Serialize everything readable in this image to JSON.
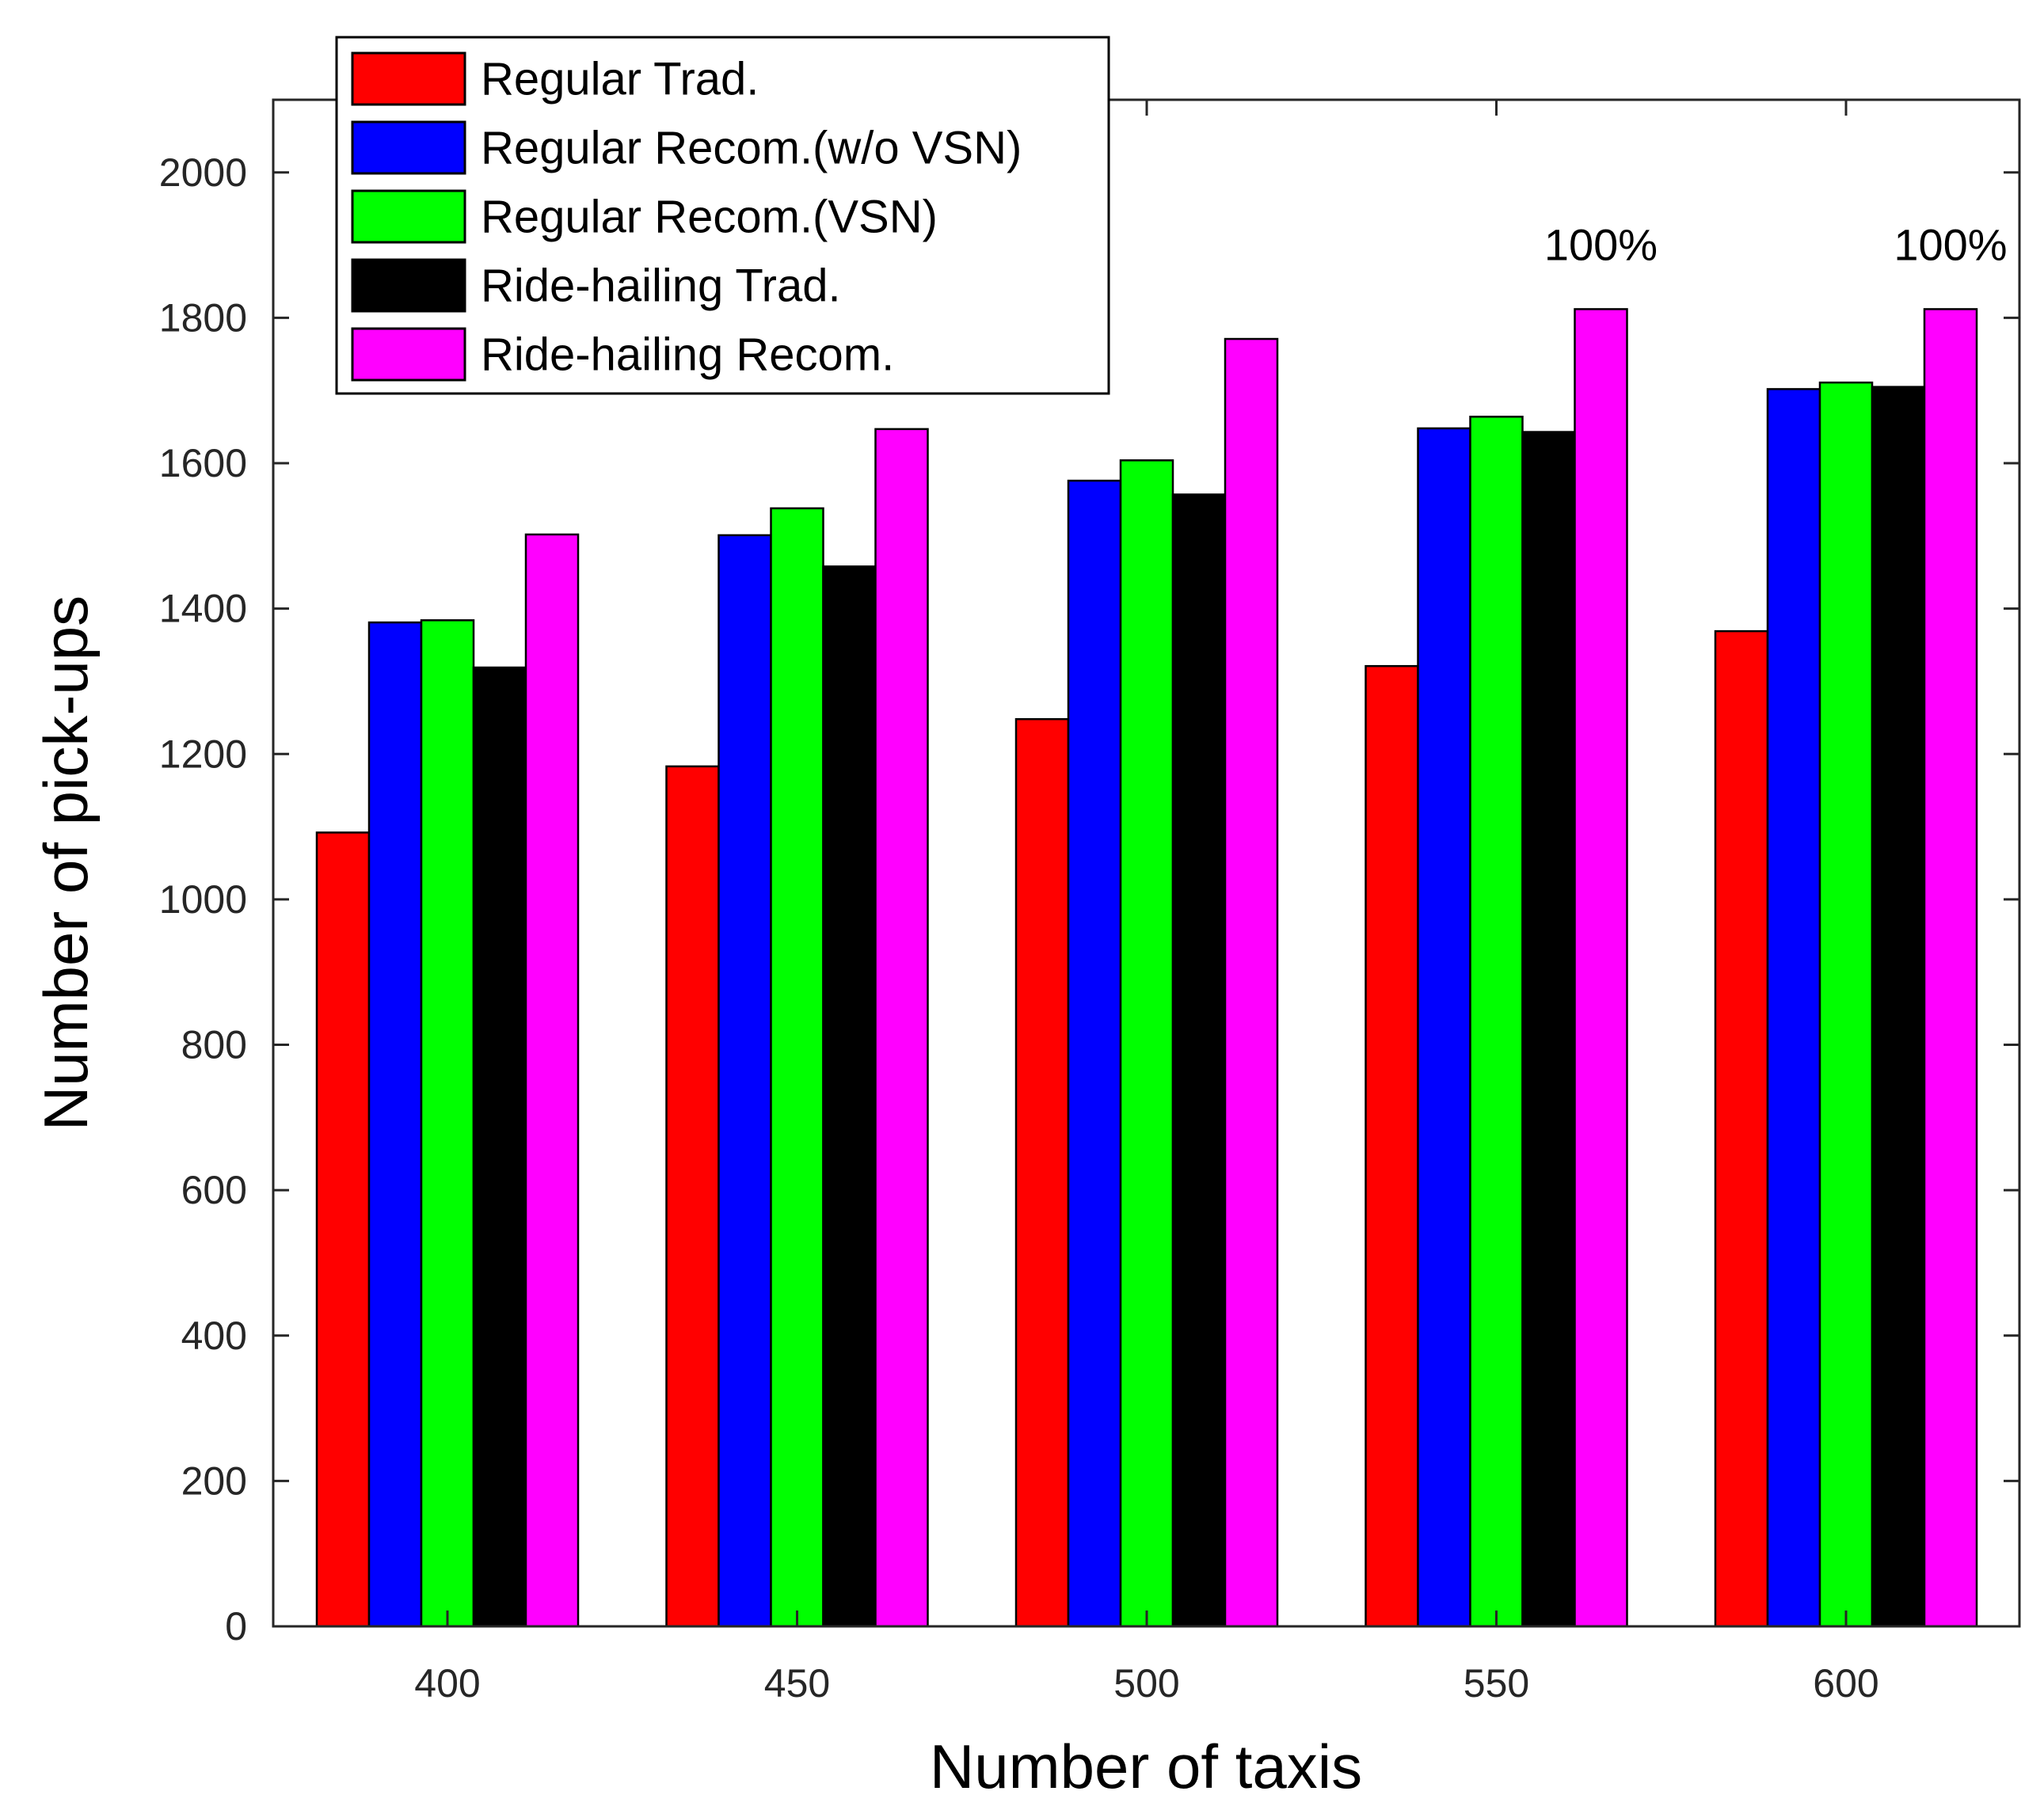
{
  "chart_data": {
    "type": "bar",
    "xlabel": "Number of taxis",
    "ylabel": "Number of pick-ups",
    "categories": [
      "400",
      "450",
      "500",
      "550",
      "600"
    ],
    "ylim": [
      0,
      2100
    ],
    "yticks": [
      0,
      200,
      400,
      600,
      800,
      1000,
      1200,
      1400,
      1600,
      1800,
      2000
    ],
    "grid": false,
    "legend_position": "top-left",
    "series": [
      {
        "name": "Regular Trad.",
        "color": "#ff0000",
        "values": [
          1092,
          1183,
          1248,
          1321,
          1369
        ]
      },
      {
        "name": "Regular Recom.(w/o VSN)",
        "color": "#0000ff",
        "values": [
          1381,
          1501,
          1576,
          1648,
          1702
        ]
      },
      {
        "name": "Regular Recom.(VSN)",
        "color": "#00ff00",
        "values": [
          1384,
          1538,
          1604,
          1664,
          1711
        ]
      },
      {
        "name": "Ride-hailing Trad.",
        "color": "#000000",
        "values": [
          1319,
          1458,
          1557,
          1643,
          1705
        ]
      },
      {
        "name": "Ride-hailing Recom.",
        "color": "#ff00ff",
        "values": [
          1502,
          1647,
          1771,
          1812,
          1812
        ]
      }
    ],
    "annotations": [
      {
        "text": "100%",
        "category": "550",
        "series": "Ride-hailing Recom."
      },
      {
        "text": "100%",
        "category": "600",
        "series": "Ride-hailing Recom."
      }
    ]
  }
}
